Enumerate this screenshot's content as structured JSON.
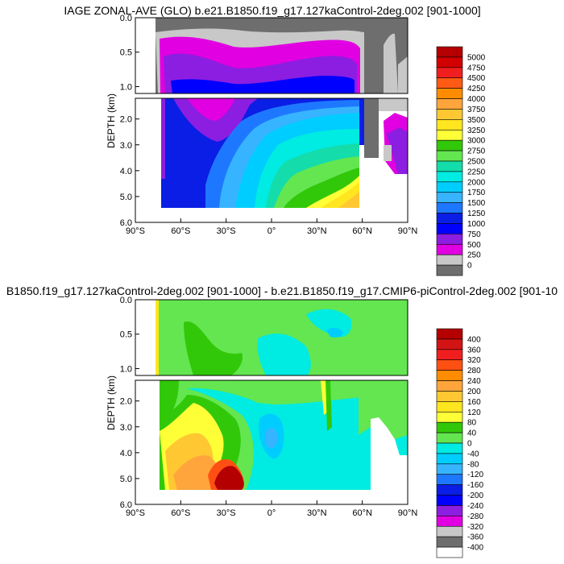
{
  "chart_data": [
    {
      "type": "heatmap",
      "title": "IAGE ZONAL-AVE (GLO) b.e21.B1850.f19_g17.127kaControl-2deg.002 [901-1000]",
      "ylabel": "DEPTH (km)",
      "x_ticks": [
        "90°S",
        "60°S",
        "30°S",
        "0°",
        "30°N",
        "60°N",
        "90°N"
      ],
      "y_ticks_upper": [
        "0.0",
        "0.5",
        "1.0"
      ],
      "y_ticks_lower": [
        "2.0",
        "3.0",
        "4.0",
        "5.0",
        "6.0"
      ],
      "xlim": [
        -90,
        90
      ],
      "ylim_km": [
        0,
        6
      ],
      "colorbar": {
        "levels": [
          "5000",
          "4750",
          "4500",
          "4250",
          "4000",
          "3750",
          "3500",
          "3250",
          "3000",
          "2750",
          "2500",
          "2250",
          "2000",
          "1750",
          "1500",
          "1250",
          "1000",
          "750",
          "500",
          "250",
          "0"
        ],
        "colors": [
          "#b40000",
          "#d20000",
          "#f01e1e",
          "#ff5a14",
          "#ff8c00",
          "#ffa53c",
          "#ffc832",
          "#ffe61e",
          "#ffff37",
          "#32c80a",
          "#64e650",
          "#14dcaa",
          "#00ebe1",
          "#00cdff",
          "#37b4ff",
          "#1e78ff",
          "#0a1ee6",
          "#0000ff",
          "#8c1ee1",
          "#e100e1",
          "#c8c8c8",
          "#6e6e6e"
        ]
      }
    },
    {
      "type": "heatmap",
      "title": "B1850.f19_g17.127kaControl-2deg.002 [901-1000] - b.e21.B1850.f19_g17.CMIP6-piControl-2deg.002 [901-10",
      "ylabel": "DEPTH (km)",
      "x_ticks": [
        "90°S",
        "60°S",
        "30°S",
        "0°",
        "30°N",
        "60°N",
        "90°N"
      ],
      "y_ticks_upper": [
        "0.0",
        "0.5",
        "1.0"
      ],
      "y_ticks_lower": [
        "2.0",
        "3.0",
        "4.0",
        "5.0",
        "6.0"
      ],
      "xlim": [
        -90,
        90
      ],
      "ylim_km": [
        0,
        6
      ],
      "colorbar": {
        "levels": [
          "400",
          "360",
          "320",
          "280",
          "240",
          "200",
          "160",
          "120",
          "80",
          "40",
          "0",
          "-40",
          "-80",
          "-120",
          "-160",
          "-200",
          "-240",
          "-280",
          "-320",
          "-360",
          "-400"
        ],
        "colors": [
          "#b40000",
          "#d21414",
          "#f01e1e",
          "#ff5014",
          "#ff8c00",
          "#ffa53c",
          "#ffc832",
          "#ffe61e",
          "#ffff37",
          "#32c80a",
          "#64e650",
          "#00ebe1",
          "#00cdff",
          "#37b4ff",
          "#1e78ff",
          "#0a1ee6",
          "#0000ff",
          "#8c1ee1",
          "#e100e1",
          "#c8c8c8",
          "#6e6e6e",
          "#ffffff"
        ]
      }
    }
  ]
}
